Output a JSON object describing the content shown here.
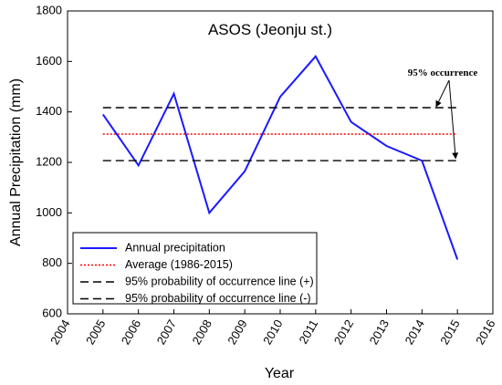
{
  "chart_data": {
    "type": "line",
    "title": "ASOS (Jeonju st.)",
    "xlabel": "Year",
    "ylabel": "Annual Precipitation (mm)",
    "xlim": [
      2004,
      2016
    ],
    "ylim": [
      600,
      1800
    ],
    "x_ticks": [
      2004,
      2005,
      2006,
      2007,
      2008,
      2009,
      2010,
      2011,
      2012,
      2013,
      2014,
      2015,
      2016
    ],
    "y_ticks": [
      600,
      800,
      1000,
      1200,
      1400,
      1600,
      1800
    ],
    "grid": false,
    "series": [
      {
        "name": "Annual precipitation",
        "color": "#1a1aff",
        "style": "solid",
        "x": [
          2005,
          2006,
          2007,
          2008,
          2009,
          2010,
          2011,
          2012,
          2013,
          2014,
          2015
        ],
        "y": [
          1390,
          1188,
          1472,
          1000,
          1165,
          1460,
          1620,
          1360,
          1265,
          1207,
          815
        ]
      },
      {
        "name": "Average (1986-2015)",
        "color": "#ff0000",
        "style": "dotted",
        "x": [
          2005,
          2015
        ],
        "y": [
          1312,
          1312
        ]
      },
      {
        "name": "95% probability of occurrence line (+)",
        "color": "#000000",
        "style": "dashed",
        "x": [
          2005,
          2015
        ],
        "y": [
          1417,
          1417
        ]
      },
      {
        "name": "95% probability of occurrence line (-)",
        "color": "#000000",
        "style": "dashed",
        "x": [
          2005,
          2015
        ],
        "y": [
          1207,
          1207
        ]
      }
    ],
    "annotation": {
      "text": "95% occurrence",
      "arrow_targets": [
        {
          "x": 2014.4,
          "y": 1417
        },
        {
          "x": 2014.95,
          "y": 1212
        }
      ]
    },
    "legend_position": "bottom-left"
  }
}
